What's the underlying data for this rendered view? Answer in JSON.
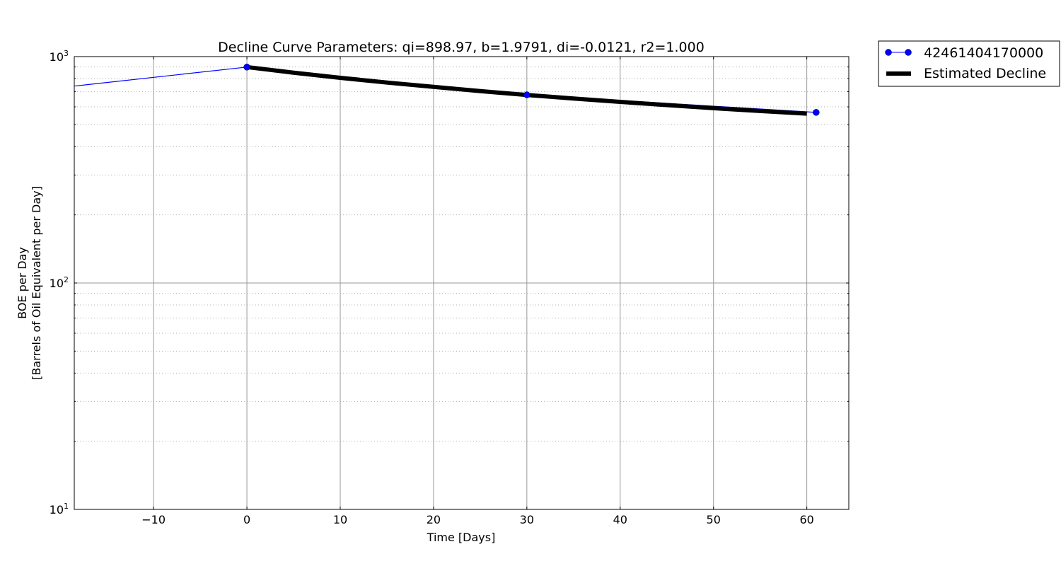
{
  "chart_data": {
    "type": "line",
    "title": "Decline Curve Parameters: qi=898.97, b=1.9791, di=-0.0121, r2=1.000",
    "xlabel": "Time [Days]",
    "ylabel_line1": "BOE per Day",
    "ylabel_line2": "[Barrels of Oil Equivalent per Day]",
    "xlim": [
      -18.5,
      64.5
    ],
    "ylim": [
      10,
      1000
    ],
    "yscale": "log",
    "grid": true,
    "legend_position": "outside-top-right",
    "x_ticks": [
      {
        "value": -10,
        "label": "−10"
      },
      {
        "value": 0,
        "label": "0"
      },
      {
        "value": 10,
        "label": "10"
      },
      {
        "value": 20,
        "label": "20"
      },
      {
        "value": 30,
        "label": "30"
      },
      {
        "value": 40,
        "label": "40"
      },
      {
        "value": 50,
        "label": "50"
      },
      {
        "value": 60,
        "label": "60"
      }
    ],
    "y_ticks": [
      {
        "value": 10,
        "base": "10",
        "exp": "1"
      },
      {
        "value": 100,
        "base": "10",
        "exp": "2"
      },
      {
        "value": 1000,
        "base": "10",
        "exp": "3"
      }
    ],
    "series": [
      {
        "name": "42461404170000",
        "color": "#0000ff",
        "marker": "circle",
        "x": [
          -31,
          0,
          30,
          61
        ],
        "y": [
          650,
          898.97,
          678,
          567
        ]
      },
      {
        "name": "Estimated Decline",
        "color": "#000000",
        "marker": "none",
        "x": [
          0,
          5,
          10,
          15,
          20,
          25,
          30,
          35,
          40,
          45,
          50,
          55,
          60
        ],
        "y": [
          898.97,
          849,
          806,
          768,
          735,
          704,
          677,
          653,
          631,
          611,
          592,
          575,
          560
        ]
      }
    ]
  }
}
